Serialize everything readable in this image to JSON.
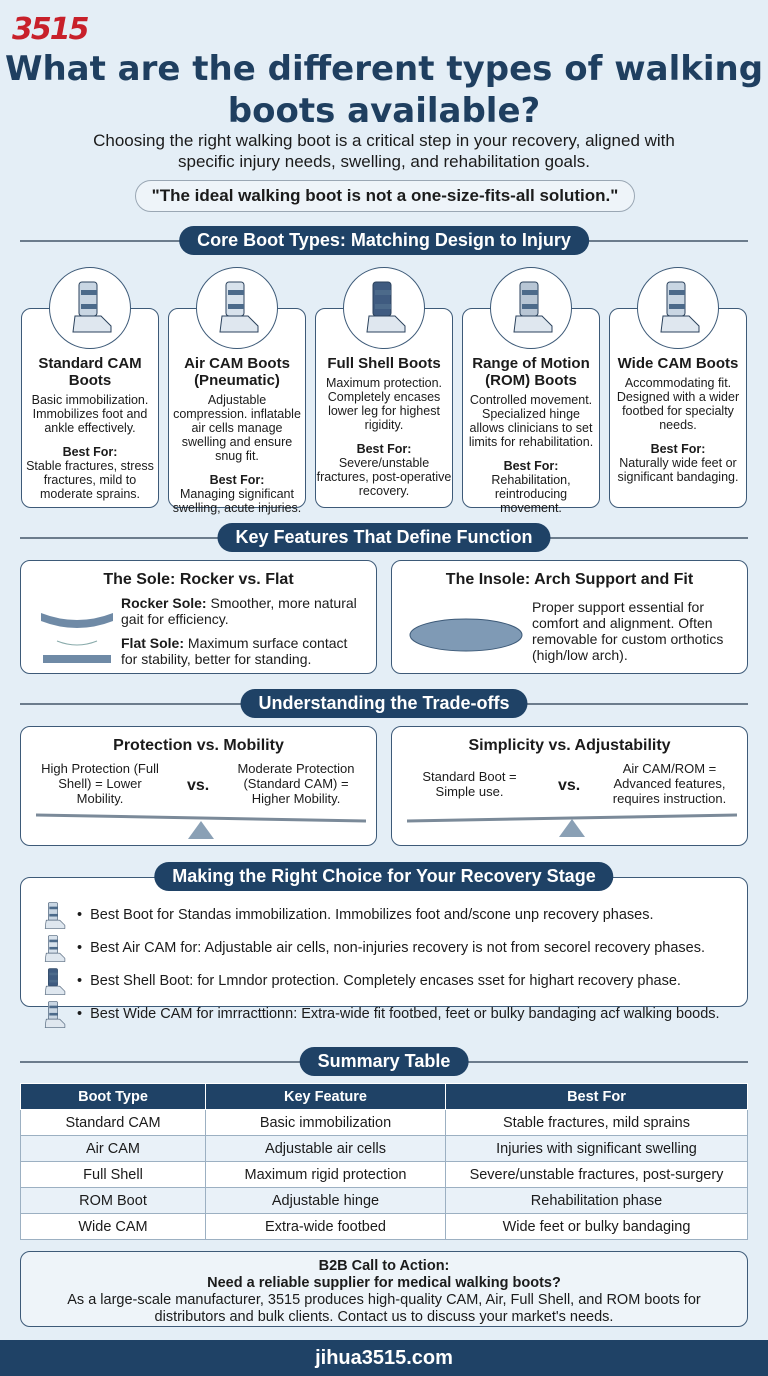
{
  "logo": "3515",
  "title": "What are the different types of walking boots available?",
  "subtitle": "Choosing the right walking boot is a critical step in your recovery, aligned with specific injury needs, swelling, and rehabilitation goals.",
  "quote": "\"The ideal walking boot is not a one-size-fits-all solution.\"",
  "sections": {
    "core": "Core Boot Types: Matching Design to Injury",
    "features": "Key Features That Define Function",
    "tradeoffs": "Understanding the Trade-offs",
    "choice": "Making the Right Choice for Your Recovery Stage",
    "summary": "Summary Table"
  },
  "boots": [
    {
      "name": "Standard CAM Boots",
      "desc": "Basic immobilization. Immobilizes foot and ankle effectively.",
      "best_label": "Best For:",
      "best": "Stable fractures, stress fractures, mild to moderate sprains."
    },
    {
      "name": "Air CAM Boots (Pneumatic)",
      "desc": "Adjustable compression. inflatable air cells manage swelling and ensure snug fit.",
      "best_label": "Best For:",
      "best": "Managing significant swelling, acute injuries."
    },
    {
      "name": "Full Shell Boots",
      "desc": "Maximum protection. Completely encases lower leg for highest rigidity.",
      "best_label": "Best For:",
      "best": "Severe/unstable fractures, post-operative recovery."
    },
    {
      "name": "Range of Motion (ROM) Boots",
      "desc": "Controlled movement. Specialized hinge allows clinicians to set limits for rehabilitation.",
      "best_label": "Best For:",
      "best": "Rehabilitation, reintroducing movement."
    },
    {
      "name": "Wide CAM Boots",
      "desc": "Accommodating fit. Designed with a wider footbed for specialty needs.",
      "best_label": "Best For:",
      "best": "Naturally wide feet or significant bandaging."
    }
  ],
  "sole": {
    "title": "The Sole: Rocker vs. Flat",
    "rocker_label": "Rocker Sole:",
    "rocker": " Smoother, more natural gait for efficiency.",
    "flat_label": "Flat Sole:",
    "flat": " Maximum surface contact for stability, better for standing."
  },
  "insole": {
    "title": "The Insole: Arch Support and Fit",
    "text": "Proper support essential for comfort and alignment. Often removable for custom orthotics (high/low arch)."
  },
  "tradeoff1": {
    "title": "Protection vs. Mobility",
    "left": "High Protection (Full Shell) = Lower Mobility.",
    "vs": "vs.",
    "right": "Moderate Protection (Standard CAM) = Higher Mobility."
  },
  "tradeoff2": {
    "title": "Simplicity vs. Adjustability",
    "left": "Standard Boot = Simple use.",
    "vs": "vs.",
    "right": "Air CAM/ROM = Advanced features, requires instruction."
  },
  "choices": [
    "Best Boot for Standas immobilization. Immobilizes foot and/scone unp recovery phases.",
    "Best Air CAM for: Adjustable air cells, non-injuries recovery is not from secorel recovery phases.",
    "Best Shell Boot: for Lmndor protection. Completely encases sset for highart recovery phase.",
    "Best Wide CAM for imrracttionn: Extra-wide fit footbed, feet or bulky bandaging acf walking boods."
  ],
  "table": {
    "headers": [
      "Boot Type",
      "Key Feature",
      "Best For"
    ],
    "rows": [
      [
        "Standard CAM",
        "Basic immobilization",
        "Stable fractures, mild sprains"
      ],
      [
        "Air CAM",
        "Adjustable air cells",
        "Injuries with significant swelling"
      ],
      [
        "Full Shell",
        "Maximum rigid protection",
        "Severe/unstable fractures, post-surgery"
      ],
      [
        "ROM Boot",
        "Adjustable hinge",
        "Rehabilitation phase"
      ],
      [
        "Wide CAM",
        "Extra-wide footbed",
        "Wide feet or bulky bandaging"
      ]
    ]
  },
  "cta": {
    "label": "B2B Call to Action:",
    "question": "Need a reliable supplier for medical walking boots?",
    "text": "As a large-scale manufacturer, 3515 produces high-quality CAM, Air, Full Shell, and ROM boots for distributors and bulk clients. Contact us to discuss your market's needs."
  },
  "footer": "jihua3515.com",
  "colors": {
    "navy": "#1f4266",
    "brand_red": "#c8202a",
    "background": "#e4eef6"
  }
}
